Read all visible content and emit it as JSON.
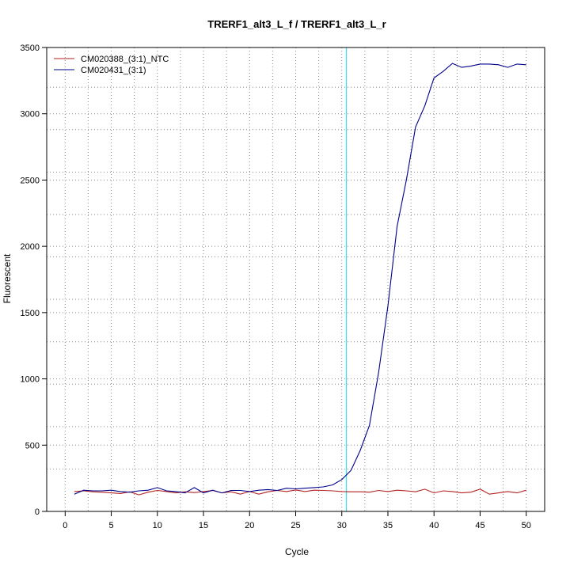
{
  "chart_data": {
    "type": "line",
    "title": "TRERF1_alt3_L_f / TRERF1_alt3_L_r",
    "xlabel": "Cycle",
    "ylabel": "Fluorescent",
    "xlim": [
      -2,
      52
    ],
    "ylim": [
      0,
      3500
    ],
    "x_ticks": [
      0,
      5,
      10,
      15,
      20,
      25,
      30,
      35,
      40,
      45,
      50
    ],
    "y_ticks": [
      0,
      500,
      1000,
      1500,
      2000,
      2500,
      3000,
      3500
    ],
    "x_tick_labels": [
      "0",
      "5",
      "10",
      "15",
      "20",
      "25",
      "30",
      "35",
      "40",
      "45",
      "50"
    ],
    "y_tick_labels": [
      "0",
      "500",
      "1000",
      "1500",
      "2000",
      "2500",
      "3000",
      "3500"
    ],
    "x_grid": [
      2.5,
      7.5,
      12.5,
      17.5,
      22.5,
      27.5,
      32.5,
      37.5,
      42.5,
      47.5
    ],
    "y_grid": [
      320,
      640,
      960,
      1280,
      1600,
      1920,
      2240,
      2560,
      2880,
      3200
    ],
    "grid": true,
    "legend_position": "top-left",
    "threshold_x": 30.5,
    "threshold_color": "#40e0f0",
    "x": [
      1,
      2,
      3,
      4,
      5,
      6,
      7,
      8,
      9,
      10,
      11,
      12,
      13,
      14,
      15,
      16,
      17,
      18,
      19,
      20,
      21,
      22,
      23,
      24,
      25,
      26,
      27,
      28,
      29,
      30,
      31,
      32,
      33,
      34,
      35,
      36,
      37,
      38,
      39,
      40,
      41,
      42,
      43,
      44,
      45,
      46,
      47,
      48,
      49,
      50
    ],
    "series": [
      {
        "name": "CM020388_(3:1)_NTC",
        "color": "#b22222",
        "values": [
          150,
          155,
          148,
          145,
          140,
          135,
          148,
          125,
          145,
          158,
          150,
          140,
          148,
          142,
          150,
          158,
          140,
          148,
          130,
          150,
          130,
          148,
          158,
          150,
          162,
          150,
          160,
          158,
          155,
          150,
          148,
          148,
          145,
          158,
          150,
          160,
          155,
          148,
          168,
          140,
          155,
          150,
          140,
          145,
          168,
          130,
          140,
          150,
          140,
          160
        ]
      },
      {
        "name": "CM020431_(3:1)",
        "color": "#00008b",
        "values": [
          130,
          160,
          155,
          155,
          160,
          150,
          145,
          155,
          160,
          180,
          155,
          150,
          140,
          180,
          140,
          160,
          140,
          158,
          158,
          150,
          160,
          165,
          158,
          175,
          170,
          175,
          180,
          185,
          200,
          240,
          310,
          460,
          650,
          1050,
          1550,
          2150,
          2500,
          2900,
          3060,
          3270,
          3320,
          3380,
          3350,
          3360,
          3375,
          3375,
          3370,
          3350,
          3375,
          3370
        ]
      }
    ]
  }
}
